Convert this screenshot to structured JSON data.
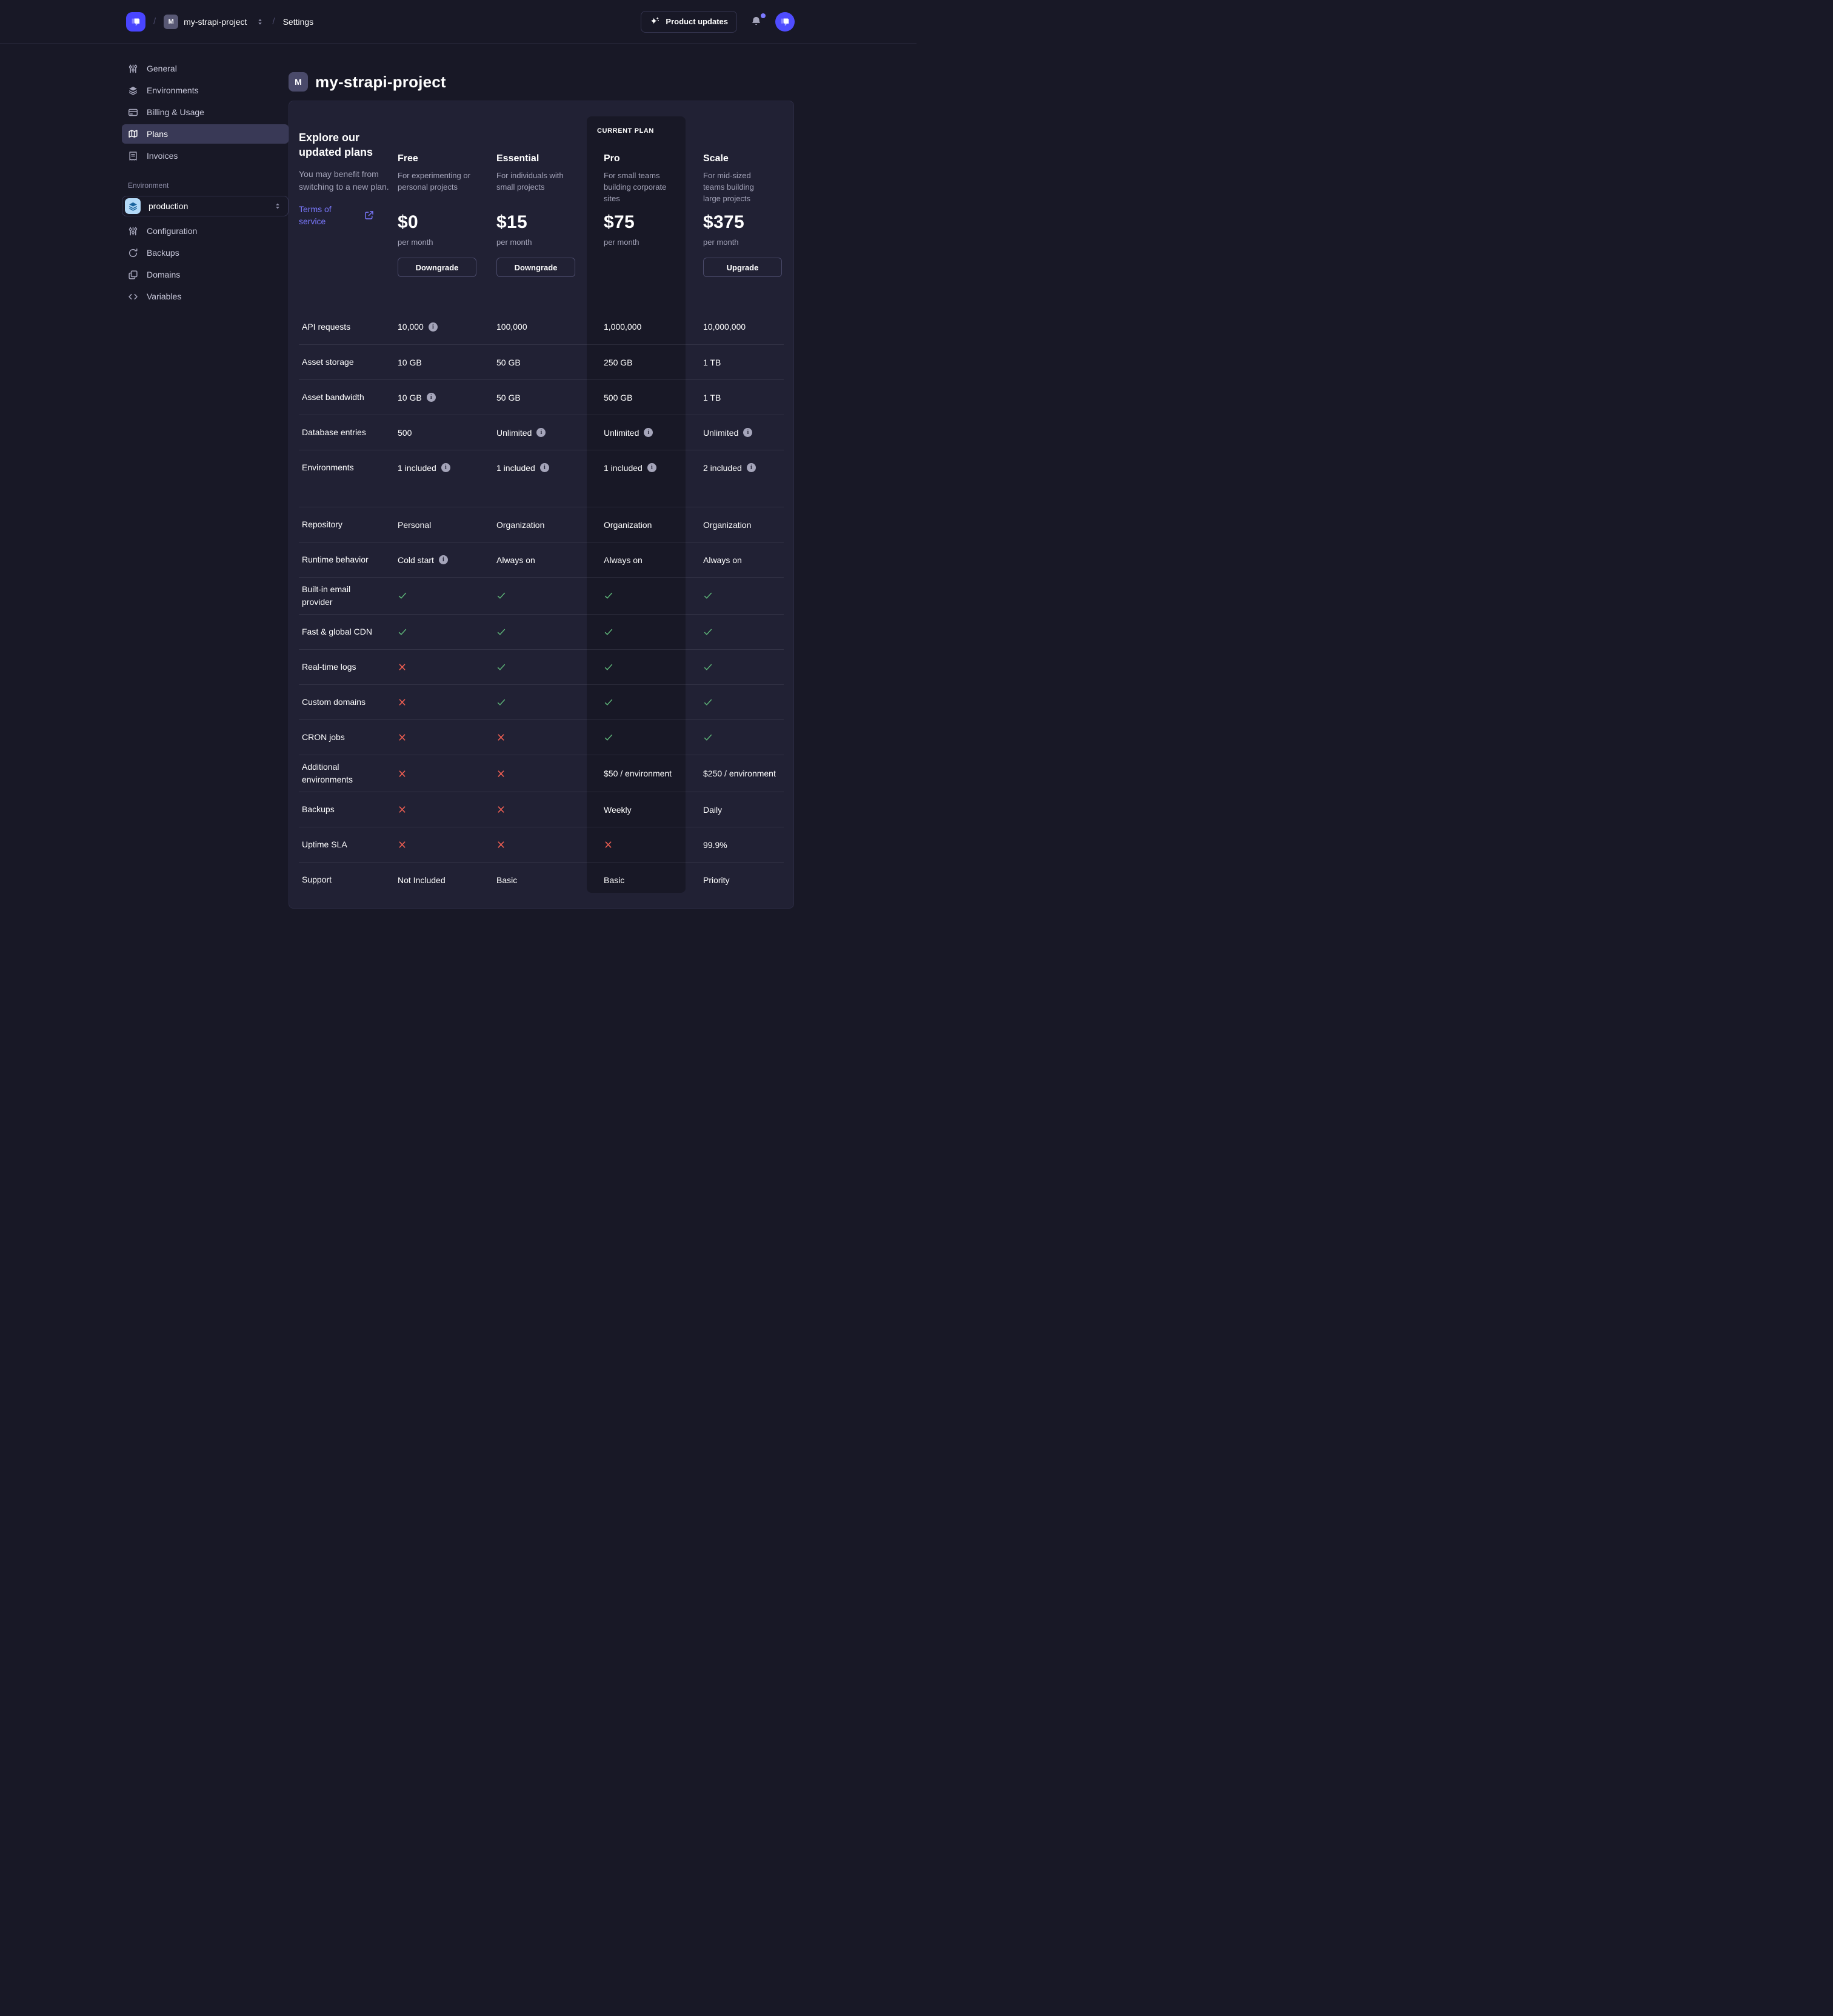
{
  "colors": {
    "accent": "#4945ff",
    "link": "#7b79ff",
    "success": "#5cb176",
    "danger": "#ee5e52",
    "background": "#181826",
    "card": "#212134"
  },
  "header": {
    "brand_icon": "strapi-logo",
    "breadcrumb": {
      "project_initial": "M",
      "project": "my-strapi-project",
      "separator": "/",
      "section": "Settings"
    },
    "product_updates_label": "Product updates",
    "bell_icon": "bell",
    "avatar_icon": "strapi-logo"
  },
  "sidebar": {
    "items": [
      {
        "label": "General",
        "icon": "sliders",
        "active": false
      },
      {
        "label": "Environments",
        "icon": "layers",
        "active": false
      },
      {
        "label": "Billing & Usage",
        "icon": "credit-card",
        "active": false
      },
      {
        "label": "Plans",
        "icon": "map",
        "active": true
      },
      {
        "label": "Invoices",
        "icon": "invoice",
        "active": false
      }
    ],
    "environment_section": {
      "label": "Environment",
      "select": {
        "value": "production",
        "icon": "layers"
      },
      "items": [
        {
          "label": "Configuration",
          "icon": "sliders"
        },
        {
          "label": "Backups",
          "icon": "refresh"
        },
        {
          "label": "Domains",
          "icon": "copy"
        },
        {
          "label": "Variables",
          "icon": "code"
        }
      ]
    }
  },
  "main": {
    "title_initial": "M",
    "title": "my-strapi-project",
    "intro": {
      "heading": "Explore our updated plans",
      "body": "You may benefit from switching to a new plan.",
      "link_label": "Terms of service"
    },
    "current_plan_badge": "CURRENT PLAN",
    "plans": [
      {
        "name": "Free",
        "description": "For experimenting or personal projects",
        "price": "$0",
        "period": "per month",
        "action": "Downgrade",
        "current": false
      },
      {
        "name": "Essential",
        "description": "For individuals with small projects",
        "price": "$15",
        "period": "per month",
        "action": "Downgrade",
        "current": false
      },
      {
        "name": "Pro",
        "description": "For small teams building corporate sites",
        "price": "$75",
        "period": "per month",
        "action": null,
        "current": true
      },
      {
        "name": "Scale",
        "description": "For mid-sized teams building large projects",
        "price": "$375",
        "period": "per month",
        "action": "Upgrade",
        "current": false
      }
    ],
    "features": [
      {
        "label": "API requests",
        "cells": [
          {
            "t": "text",
            "v": "10,000",
            "info": true
          },
          {
            "t": "text",
            "v": "100,000"
          },
          {
            "t": "text",
            "v": "1,000,000"
          },
          {
            "t": "text",
            "v": "10,000,000"
          }
        ]
      },
      {
        "label": "Asset storage",
        "cells": [
          {
            "t": "text",
            "v": "10 GB"
          },
          {
            "t": "text",
            "v": "50 GB"
          },
          {
            "t": "text",
            "v": "250 GB"
          },
          {
            "t": "text",
            "v": "1 TB"
          }
        ]
      },
      {
        "label": "Asset bandwidth",
        "cells": [
          {
            "t": "text",
            "v": "10 GB",
            "info": true
          },
          {
            "t": "text",
            "v": "50 GB"
          },
          {
            "t": "text",
            "v": "500 GB"
          },
          {
            "t": "text",
            "v": "1 TB"
          }
        ]
      },
      {
        "label": "Database entries",
        "cells": [
          {
            "t": "text",
            "v": "500"
          },
          {
            "t": "text",
            "v": "Unlimited",
            "info": true
          },
          {
            "t": "text",
            "v": "Unlimited",
            "info": true
          },
          {
            "t": "text",
            "v": "Unlimited",
            "info": true
          }
        ]
      },
      {
        "label": "Environments",
        "gap_after": true,
        "cells": [
          {
            "t": "text",
            "v": "1 included",
            "info": true
          },
          {
            "t": "text",
            "v": "1 included",
            "info": true
          },
          {
            "t": "text",
            "v": "1 included",
            "info": true
          },
          {
            "t": "text",
            "v": "2 included",
            "info": true
          }
        ]
      },
      {
        "label": "Repository",
        "cells": [
          {
            "t": "text",
            "v": "Personal"
          },
          {
            "t": "text",
            "v": "Organization"
          },
          {
            "t": "text",
            "v": "Organization"
          },
          {
            "t": "text",
            "v": "Organization"
          }
        ]
      },
      {
        "label": "Runtime behavior",
        "cells": [
          {
            "t": "text",
            "v": "Cold start",
            "info": true
          },
          {
            "t": "text",
            "v": "Always on"
          },
          {
            "t": "text",
            "v": "Always on"
          },
          {
            "t": "text",
            "v": "Always on"
          }
        ]
      },
      {
        "label": "Built-in email provider",
        "cells": [
          {
            "t": "check"
          },
          {
            "t": "check"
          },
          {
            "t": "check"
          },
          {
            "t": "check"
          }
        ]
      },
      {
        "label": "Fast & global CDN",
        "cells": [
          {
            "t": "check"
          },
          {
            "t": "check"
          },
          {
            "t": "check"
          },
          {
            "t": "check"
          }
        ]
      },
      {
        "label": "Real-time logs",
        "cells": [
          {
            "t": "cross"
          },
          {
            "t": "check"
          },
          {
            "t": "check"
          },
          {
            "t": "check"
          }
        ]
      },
      {
        "label": "Custom domains",
        "cells": [
          {
            "t": "cross"
          },
          {
            "t": "check"
          },
          {
            "t": "check"
          },
          {
            "t": "check"
          }
        ]
      },
      {
        "label": "CRON jobs",
        "cells": [
          {
            "t": "cross"
          },
          {
            "t": "cross"
          },
          {
            "t": "check"
          },
          {
            "t": "check"
          }
        ]
      },
      {
        "label": "Additional environments",
        "cells": [
          {
            "t": "cross"
          },
          {
            "t": "cross"
          },
          {
            "t": "text",
            "v": "$50 / environment"
          },
          {
            "t": "text",
            "v": "$250 / environment"
          }
        ]
      },
      {
        "label": "Backups",
        "cells": [
          {
            "t": "cross"
          },
          {
            "t": "cross"
          },
          {
            "t": "text",
            "v": "Weekly"
          },
          {
            "t": "text",
            "v": "Daily"
          }
        ]
      },
      {
        "label": "Uptime SLA",
        "cells": [
          {
            "t": "cross"
          },
          {
            "t": "cross"
          },
          {
            "t": "cross"
          },
          {
            "t": "text",
            "v": "99.9%"
          }
        ]
      },
      {
        "label": "Support",
        "cells": [
          {
            "t": "text",
            "v": "Not Included"
          },
          {
            "t": "text",
            "v": "Basic"
          },
          {
            "t": "text",
            "v": "Basic"
          },
          {
            "t": "text",
            "v": "Priority"
          }
        ]
      }
    ]
  }
}
